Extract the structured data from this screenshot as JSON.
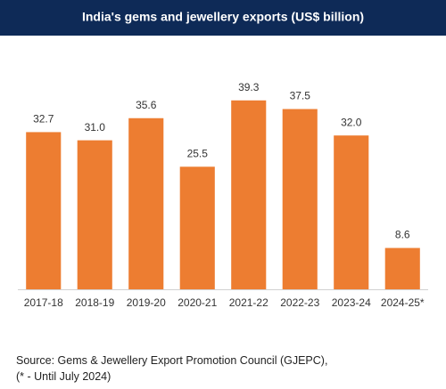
{
  "chart_data": {
    "type": "bar",
    "title": "India's gems and jewellery exports (US$ billion)",
    "categories": [
      "2017-18",
      "2018-19",
      "2019-20",
      "2020-21",
      "2021-22",
      "2022-23",
      "2023-24",
      "2024-25*"
    ],
    "values": [
      32.7,
      31.0,
      35.6,
      25.5,
      39.3,
      37.5,
      32.0,
      8.6
    ],
    "value_labels": [
      "32.7",
      "31.0",
      "35.6",
      "25.5",
      "39.3",
      "37.5",
      "32.0",
      "8.6"
    ],
    "color": "#ed7d31",
    "source": [
      "Source: Gems & Jewellery Export Promotion Council (GJEPC),",
      "(* - Until July 2024)"
    ]
  }
}
